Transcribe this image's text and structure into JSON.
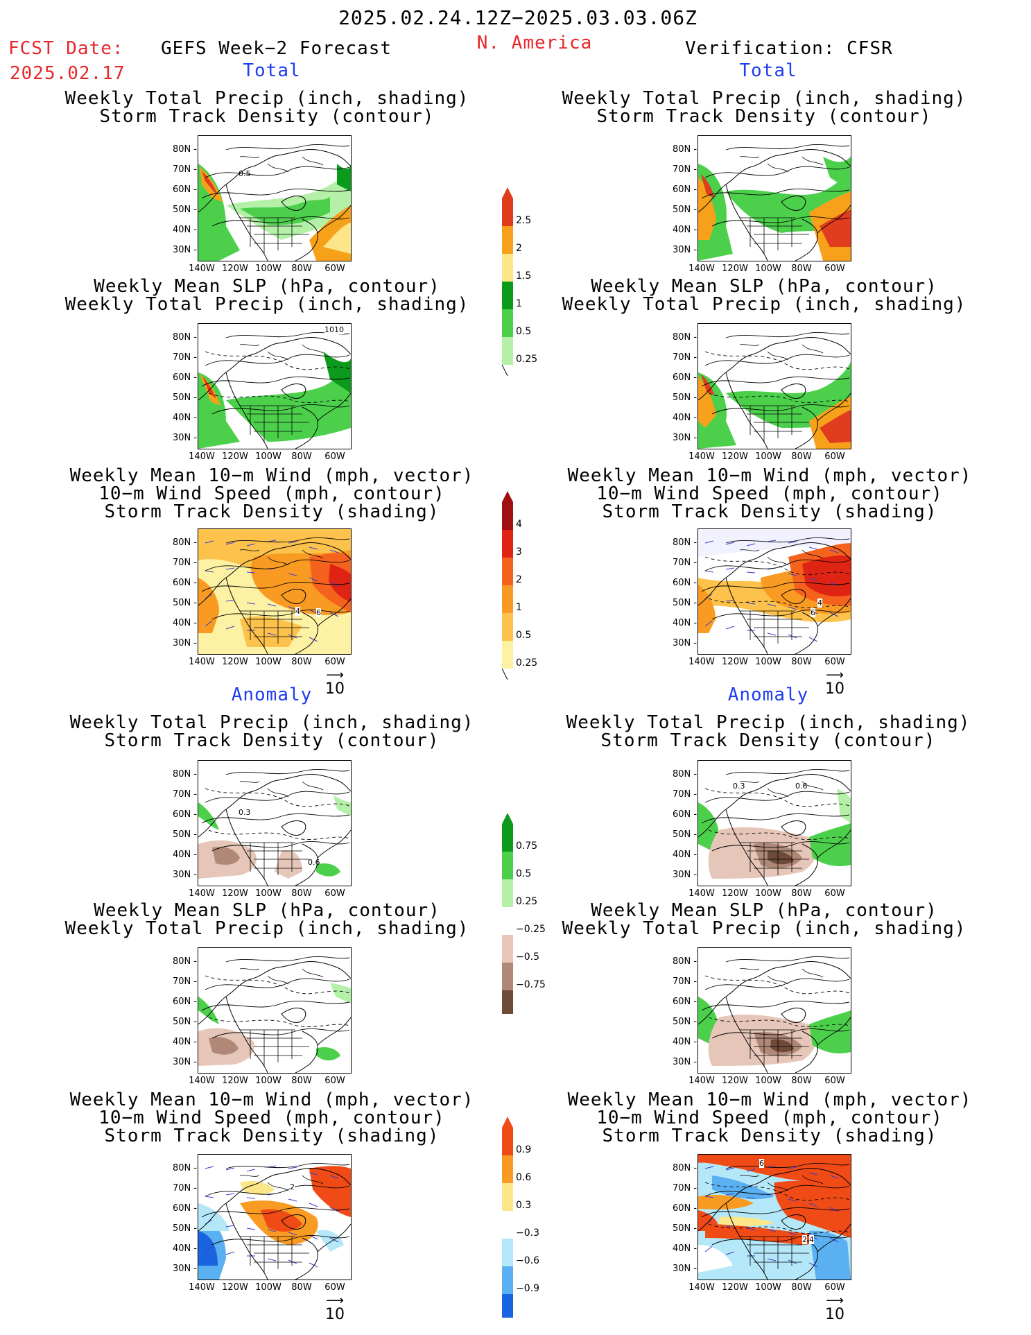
{
  "header": {
    "period": "2025.02.24.12Z−2025.03.03.06Z",
    "fcst_label": "FCST Date:",
    "fcst_date": "2025.02.17",
    "model": "GEFS Week−2 Forecast",
    "region": "N. America",
    "verification": "Verification: CFSR",
    "total_left": "Total",
    "total_right": "Total",
    "anomaly_left": "Anomaly",
    "anomaly_right": "Anomaly"
  },
  "titles": {
    "precip": [
      "Weekly Total Precip (inch, shading)",
      "Storm Track Density (contour)"
    ],
    "slp": [
      "Weekly Mean SLP (hPa, contour)",
      "Weekly Total Precip (inch, shading)"
    ],
    "wind": [
      "Weekly Mean 10−m Wind (mph, vector)",
      "10−m Wind Speed (mph, contour)",
      "Storm Track Density (shading)"
    ]
  },
  "lat_labels": [
    "80N",
    "70N",
    "60N",
    "50N",
    "40N",
    "30N"
  ],
  "lon_labels": [
    "140W",
    "120W",
    "100W",
    "80W",
    "60W"
  ],
  "wind_reference": "10",
  "panel_labels": {
    "fl_precip": "0.5",
    "fl_slp": "1010",
    "fl_wind": [
      "4",
      "6"
    ],
    "vr_wind": [
      "4",
      "6"
    ],
    "fl_anom_precip": [
      "0.3",
      "0.6"
    ],
    "vr_anom_precip": [
      "0.3",
      "0.6"
    ],
    "fl_anom_wind": "2",
    "vr_anom_wind": [
      "6",
      "4",
      "2"
    ]
  },
  "colorbars": {
    "precip_total": {
      "labels": [
        "2.5",
        "2",
        "1.5",
        "1",
        "0.5",
        "0.25"
      ],
      "colors": [
        "#e03c1e",
        "#f7a11a",
        "#fde68a",
        "#0c9a1c",
        "#4cd04c",
        "#b4f0a8"
      ]
    },
    "storm_total": {
      "labels": [
        "4",
        "3",
        "2",
        "1",
        "0.5",
        "0.25"
      ],
      "colors": [
        "#a01010",
        "#e02414",
        "#f5621e",
        "#f99b22",
        "#fcc24b",
        "#fdf1a3"
      ]
    },
    "precip_anom": {
      "labels": [
        "0.75",
        "0.5",
        "0.25",
        "−0.25",
        "−0.5",
        "−0.75"
      ],
      "colors": [
        "#0c9a1c",
        "#4cd04c",
        "#b4f0a8",
        "#ffffff",
        "#e6c6b8",
        "#b08878",
        "#6e4a38"
      ]
    },
    "storm_anom": {
      "labels": [
        "0.9",
        "0.6",
        "0.3",
        "−0.3",
        "−0.6",
        "−0.9"
      ],
      "colors": [
        "#f04a16",
        "#f99b22",
        "#fde68a",
        "#ffffff",
        "#b4e8f8",
        "#5ab0f0",
        "#1a64e0"
      ]
    }
  }
}
